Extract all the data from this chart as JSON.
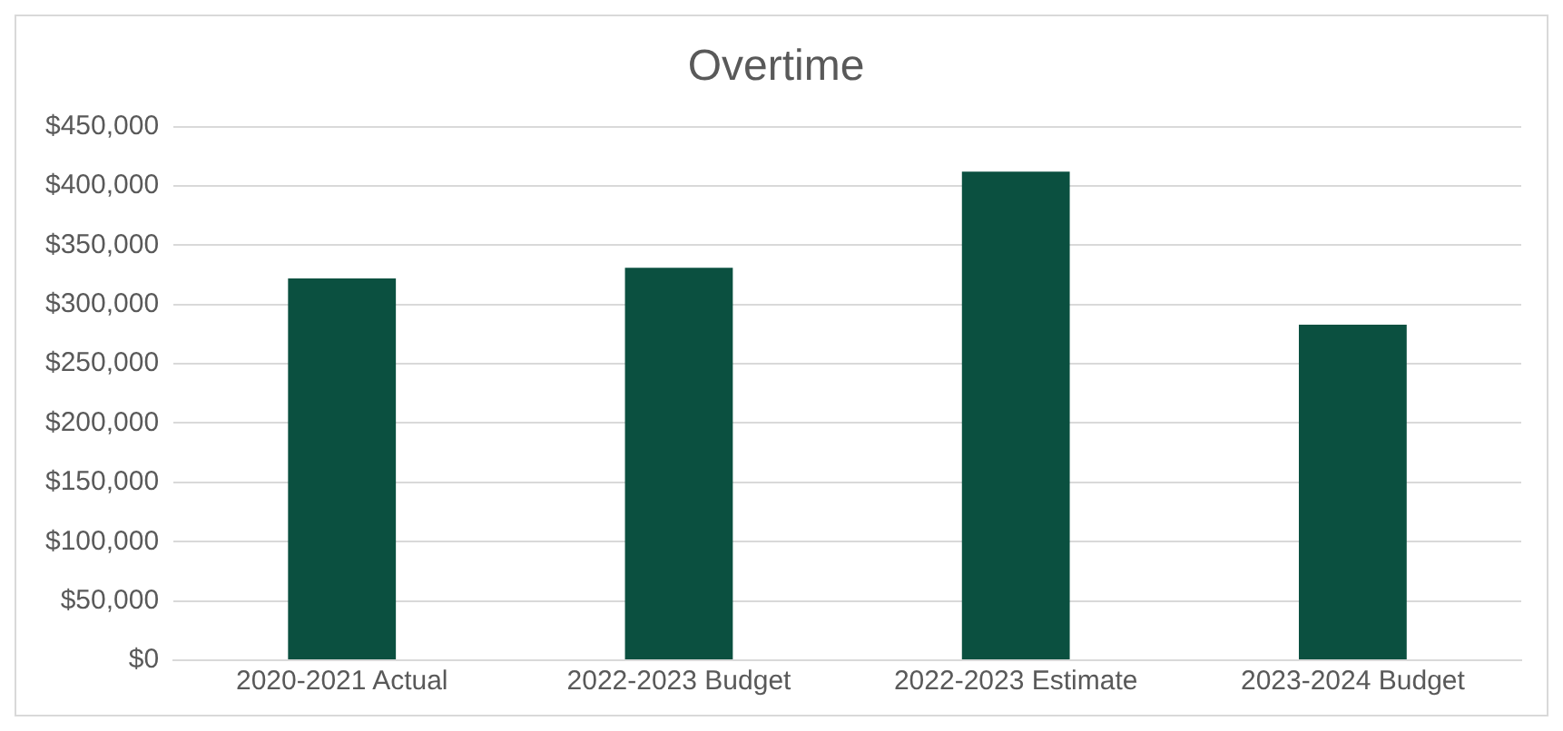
{
  "chart_data": {
    "type": "bar",
    "title": "Overtime",
    "categories": [
      "2020-2021 Actual",
      "2022-2023 Budget",
      "2022-2023 Estimate",
      "2023-2024 Budget"
    ],
    "values": [
      322000,
      331000,
      412000,
      283000
    ],
    "color": "#0b5040",
    "ylim": [
      0,
      450000
    ],
    "yticks": [
      {
        "value": 0,
        "label": "$0"
      },
      {
        "value": 50000,
        "label": "$50,000"
      },
      {
        "value": 100000,
        "label": "$100,000"
      },
      {
        "value": 150000,
        "label": "$150,000"
      },
      {
        "value": 200000,
        "label": "$200,000"
      },
      {
        "value": 250000,
        "label": "$250,000"
      },
      {
        "value": 300000,
        "label": "$300,000"
      },
      {
        "value": 350000,
        "label": "$350,000"
      },
      {
        "value": 400000,
        "label": "$400,000"
      },
      {
        "value": 450000,
        "label": "$450,000"
      }
    ],
    "grid": "y",
    "legend": false
  }
}
